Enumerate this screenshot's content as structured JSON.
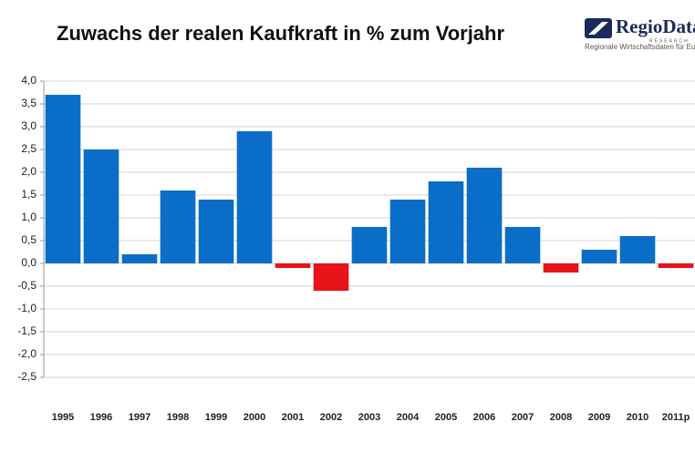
{
  "chart_data": {
    "type": "bar",
    "title": "Zuwachs der realen Kaufkraft in % zum Vorjahr",
    "logo": {
      "name": "RegioData",
      "tag": "RESEARCH",
      "tagline": "Regionale Wirtschaftsdaten für Euro"
    },
    "categories": [
      "1995",
      "1996",
      "1997",
      "1998",
      "1999",
      "2000",
      "2001",
      "2002",
      "2003",
      "2004",
      "2005",
      "2006",
      "2007",
      "2008",
      "2009",
      "2010",
      "2011p"
    ],
    "values": [
      3.7,
      2.5,
      0.2,
      1.6,
      1.4,
      2.9,
      -0.1,
      -0.6,
      0.8,
      1.4,
      1.8,
      2.1,
      0.8,
      -0.2,
      0.3,
      0.6,
      -0.1
    ],
    "color": "#0a6ec8",
    "negative_color": "#e8141a",
    "ylim": [
      -2.5,
      4.0
    ],
    "yticks": [
      {
        "value": 4.0,
        "label": "4,0"
      },
      {
        "value": 3.5,
        "label": "3,5"
      },
      {
        "value": 3.0,
        "label": "3,0"
      },
      {
        "value": 2.5,
        "label": "2,5"
      },
      {
        "value": 2.0,
        "label": "2,0"
      },
      {
        "value": 1.5,
        "label": "1,5"
      },
      {
        "value": 1.0,
        "label": "1,0"
      },
      {
        "value": 0.5,
        "label": "0,5"
      },
      {
        "value": 0,
        "label": "0,0"
      },
      {
        "value": -0.5,
        "label": "-0,5"
      },
      {
        "value": -1.0,
        "label": "-1,0"
      },
      {
        "value": -1.5,
        "label": "-1,5"
      },
      {
        "value": -2.0,
        "label": "-2,0"
      },
      {
        "value": -2.5,
        "label": "-2,5"
      }
    ],
    "grid": true
  }
}
